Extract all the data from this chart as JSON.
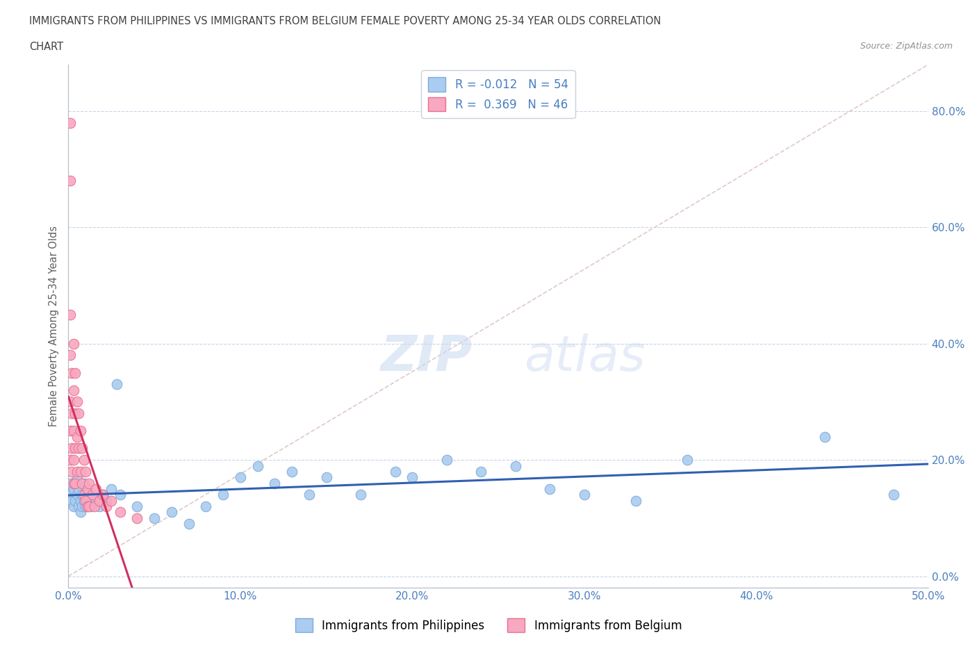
{
  "title_line1": "IMMIGRANTS FROM PHILIPPINES VS IMMIGRANTS FROM BELGIUM FEMALE POVERTY AMONG 25-34 YEAR OLDS CORRELATION",
  "title_line2": "CHART",
  "source_text": "Source: ZipAtlas.com",
  "ylabel": "Female Poverty Among 25-34 Year Olds",
  "xlim": [
    0.0,
    0.5
  ],
  "ylim": [
    -0.02,
    0.88
  ],
  "xtick_labels": [
    "0.0%",
    "10.0%",
    "20.0%",
    "30.0%",
    "40.0%",
    "50.0%"
  ],
  "xtick_values": [
    0.0,
    0.1,
    0.2,
    0.3,
    0.4,
    0.5
  ],
  "ytick_labels": [
    "0.0%",
    "20.0%",
    "40.0%",
    "60.0%",
    "80.0%"
  ],
  "ytick_values": [
    0.0,
    0.2,
    0.4,
    0.6,
    0.8
  ],
  "philippines_color": "#aaccf0",
  "philippines_edge": "#80aad8",
  "belgium_color": "#f8a8c0",
  "belgium_edge": "#e87090",
  "philippines_R": -0.012,
  "philippines_N": 54,
  "belgium_R": 0.369,
  "belgium_N": 46,
  "legend_label_philippines": "Immigrants from Philippines",
  "legend_label_belgium": "Immigrants from Belgium",
  "watermark_zip": "ZIP",
  "watermark_atlas": "atlas",
  "philippines_x": [
    0.001,
    0.001,
    0.002,
    0.003,
    0.003,
    0.004,
    0.004,
    0.005,
    0.005,
    0.006,
    0.006,
    0.007,
    0.007,
    0.008,
    0.008,
    0.009,
    0.009,
    0.01,
    0.01,
    0.011,
    0.012,
    0.013,
    0.014,
    0.016,
    0.018,
    0.02,
    0.022,
    0.025,
    0.028,
    0.03,
    0.04,
    0.05,
    0.06,
    0.07,
    0.08,
    0.09,
    0.1,
    0.11,
    0.12,
    0.13,
    0.14,
    0.15,
    0.17,
    0.19,
    0.2,
    0.22,
    0.24,
    0.26,
    0.28,
    0.3,
    0.33,
    0.36,
    0.44,
    0.48
  ],
  "philippines_y": [
    0.14,
    0.16,
    0.13,
    0.12,
    0.15,
    0.13,
    0.16,
    0.14,
    0.17,
    0.12,
    0.15,
    0.13,
    0.11,
    0.14,
    0.12,
    0.16,
    0.13,
    0.14,
    0.12,
    0.15,
    0.13,
    0.12,
    0.14,
    0.13,
    0.12,
    0.14,
    0.13,
    0.15,
    0.33,
    0.14,
    0.12,
    0.1,
    0.11,
    0.09,
    0.12,
    0.14,
    0.17,
    0.19,
    0.16,
    0.18,
    0.14,
    0.17,
    0.14,
    0.18,
    0.17,
    0.2,
    0.18,
    0.19,
    0.15,
    0.14,
    0.13,
    0.2,
    0.24,
    0.14
  ],
  "belgium_x": [
    0.001,
    0.001,
    0.001,
    0.001,
    0.001,
    0.001,
    0.001,
    0.002,
    0.002,
    0.002,
    0.002,
    0.003,
    0.003,
    0.003,
    0.003,
    0.003,
    0.004,
    0.004,
    0.004,
    0.004,
    0.005,
    0.005,
    0.005,
    0.006,
    0.006,
    0.007,
    0.007,
    0.008,
    0.008,
    0.009,
    0.009,
    0.01,
    0.01,
    0.011,
    0.011,
    0.012,
    0.012,
    0.014,
    0.015,
    0.016,
    0.018,
    0.02,
    0.022,
    0.025,
    0.03,
    0.04
  ],
  "belgium_y": [
    0.78,
    0.68,
    0.45,
    0.38,
    0.3,
    0.25,
    0.2,
    0.35,
    0.28,
    0.22,
    0.18,
    0.4,
    0.32,
    0.25,
    0.2,
    0.16,
    0.35,
    0.28,
    0.22,
    0.16,
    0.3,
    0.24,
    0.18,
    0.28,
    0.22,
    0.25,
    0.18,
    0.22,
    0.16,
    0.2,
    0.14,
    0.18,
    0.13,
    0.15,
    0.12,
    0.16,
    0.12,
    0.14,
    0.12,
    0.15,
    0.13,
    0.14,
    0.12,
    0.13,
    0.11,
    0.1
  ],
  "background_color": "#ffffff",
  "grid_color": "#c8d4e8",
  "title_color": "#404040",
  "axis_label_color": "#606060",
  "tick_label_color": "#4a7fc0",
  "trend_philippines_color": "#3060b0",
  "trend_belgium_color": "#d03060",
  "diag_line_color": "#e0c8cc"
}
